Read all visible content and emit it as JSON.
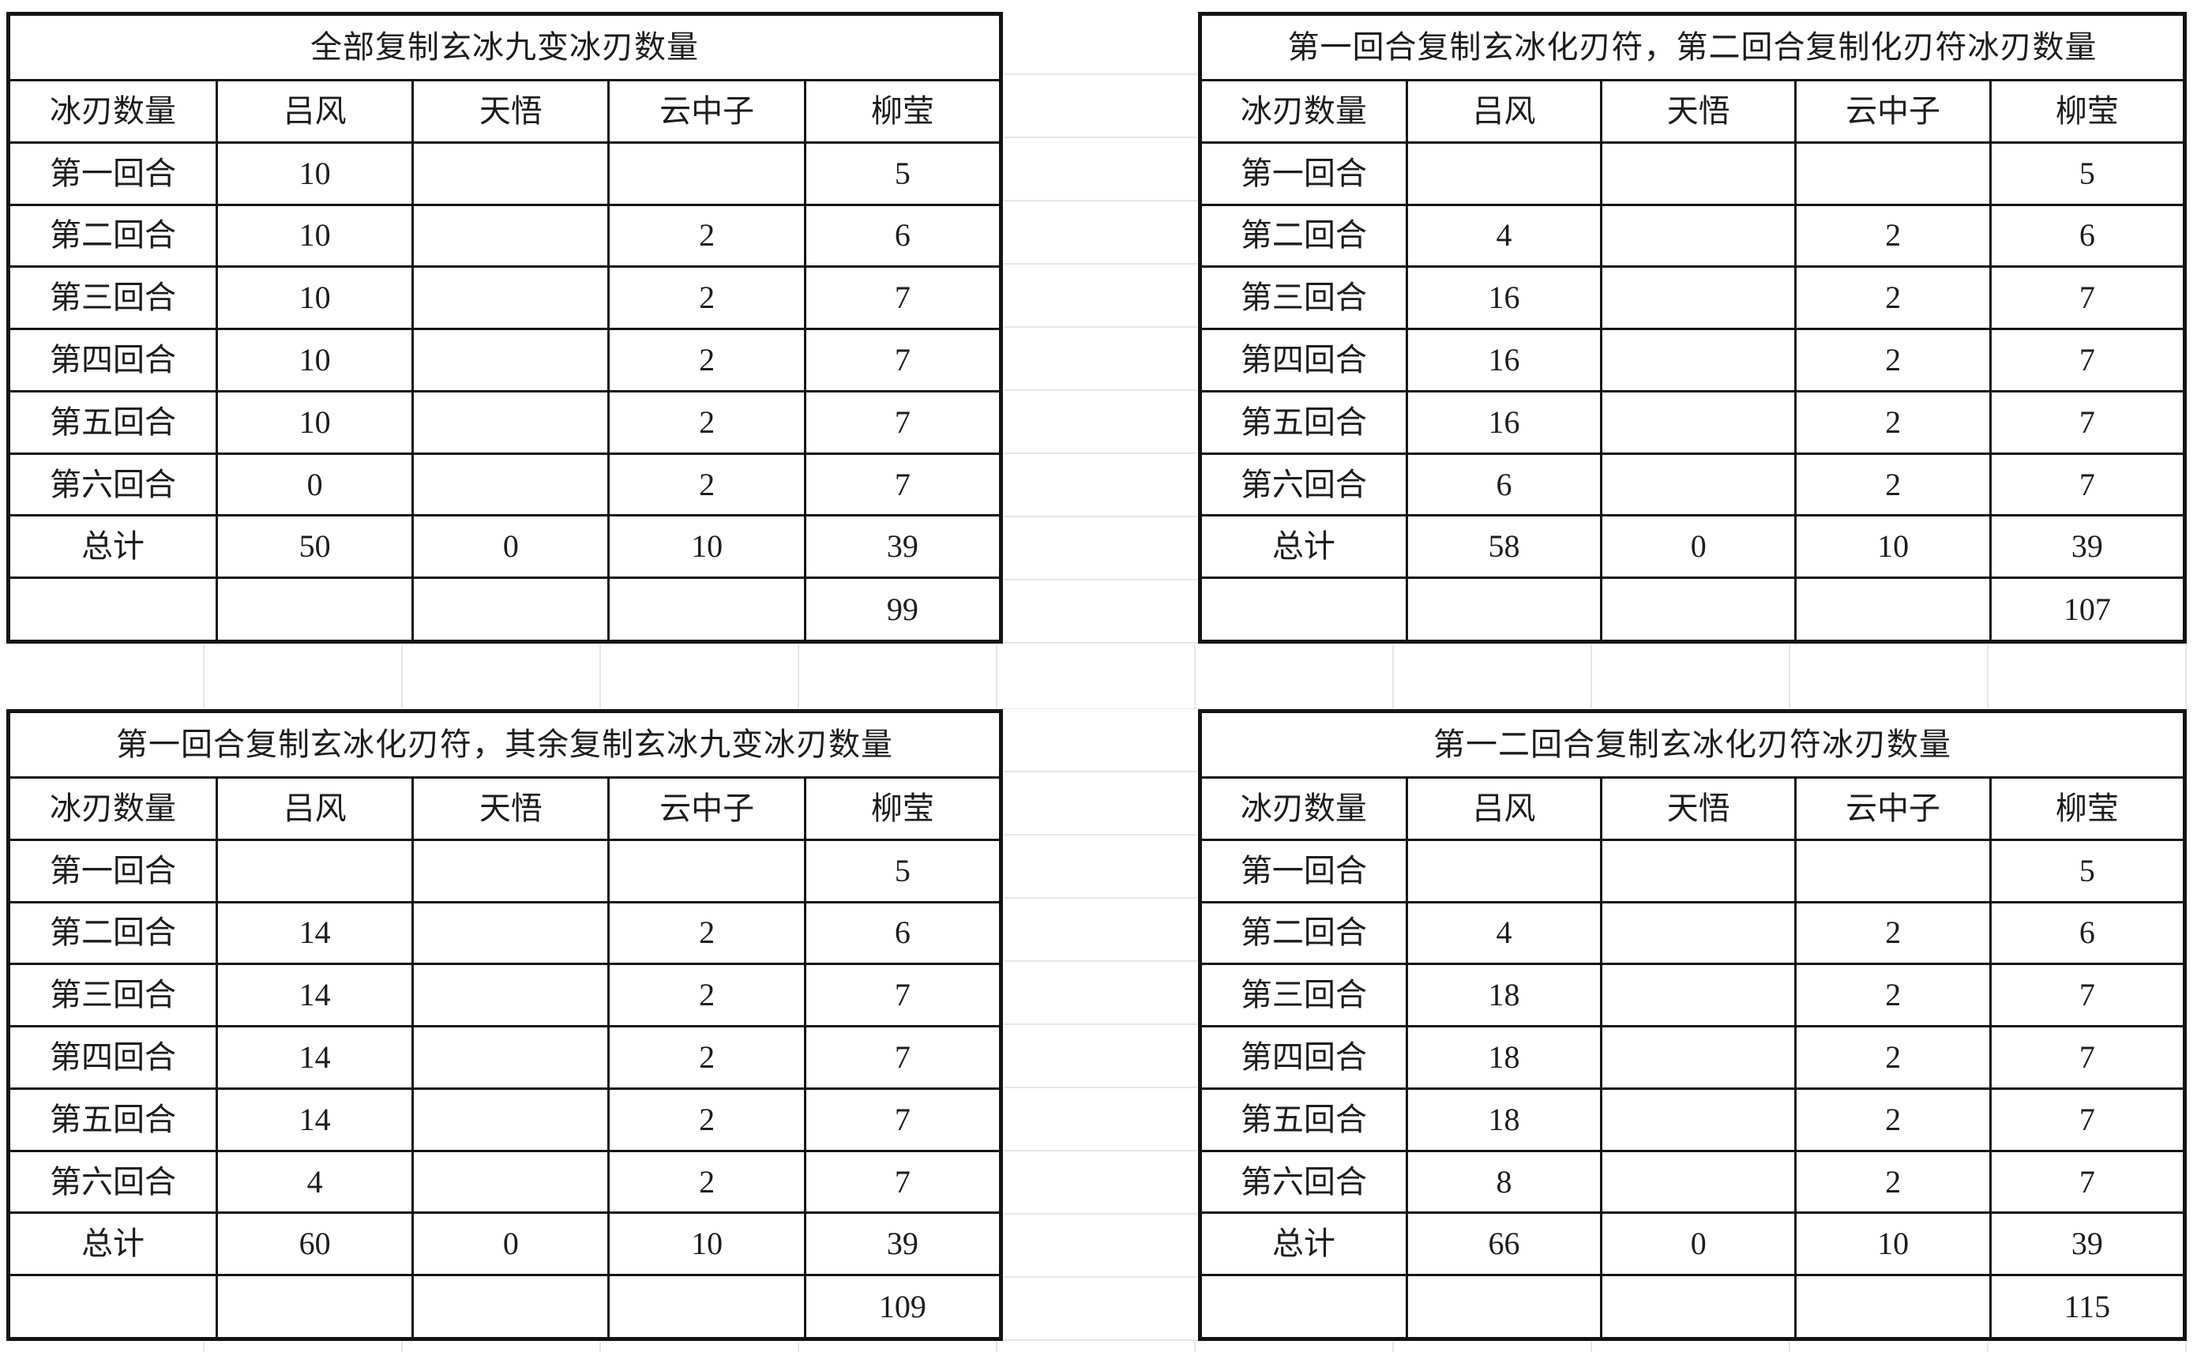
{
  "page": {
    "background_color": "#ffffff",
    "table_border_color": "#141414",
    "gridline_color": "#e6e6e6",
    "text_color": "#1d1d1d"
  },
  "tables": [
    {
      "position": "top-left",
      "title": "全部复制玄冰九变冰刃数量",
      "columns": [
        "冰刃数量",
        "吕风",
        "天悟",
        "云中子",
        "柳莹"
      ],
      "rows": [
        {
          "label": "第一回合",
          "values": [
            "10",
            "",
            "",
            "5"
          ]
        },
        {
          "label": "第二回合",
          "values": [
            "10",
            "",
            "2",
            "6"
          ]
        },
        {
          "label": "第三回合",
          "values": [
            "10",
            "",
            "2",
            "7"
          ]
        },
        {
          "label": "第四回合",
          "values": [
            "10",
            "",
            "2",
            "7"
          ]
        },
        {
          "label": "第五回合",
          "values": [
            "10",
            "",
            "2",
            "7"
          ]
        },
        {
          "label": "第六回合",
          "values": [
            "0",
            "",
            "2",
            "7"
          ]
        },
        {
          "label": "总计",
          "values": [
            "50",
            "0",
            "10",
            "39"
          ]
        },
        {
          "label": "",
          "values": [
            "",
            "",
            "",
            "99"
          ]
        }
      ]
    },
    {
      "position": "top-right",
      "title": "第一回合复制玄冰化刃符，第二回合复制化刃符冰刃数量",
      "columns": [
        "冰刃数量",
        "吕风",
        "天悟",
        "云中子",
        "柳莹"
      ],
      "rows": [
        {
          "label": "第一回合",
          "values": [
            "",
            "",
            "",
            "5"
          ]
        },
        {
          "label": "第二回合",
          "values": [
            "4",
            "",
            "2",
            "6"
          ]
        },
        {
          "label": "第三回合",
          "values": [
            "16",
            "",
            "2",
            "7"
          ]
        },
        {
          "label": "第四回合",
          "values": [
            "16",
            "",
            "2",
            "7"
          ]
        },
        {
          "label": "第五回合",
          "values": [
            "16",
            "",
            "2",
            "7"
          ]
        },
        {
          "label": "第六回合",
          "values": [
            "6",
            "",
            "2",
            "7"
          ]
        },
        {
          "label": "总计",
          "values": [
            "58",
            "0",
            "10",
            "39"
          ]
        },
        {
          "label": "",
          "values": [
            "",
            "",
            "",
            "107"
          ]
        }
      ]
    },
    {
      "position": "bottom-left",
      "title": "第一回合复制玄冰化刃符，其余复制玄冰九变冰刃数量",
      "columns": [
        "冰刃数量",
        "吕风",
        "天悟",
        "云中子",
        "柳莹"
      ],
      "rows": [
        {
          "label": "第一回合",
          "values": [
            "",
            "",
            "",
            "5"
          ]
        },
        {
          "label": "第二回合",
          "values": [
            "14",
            "",
            "2",
            "6"
          ]
        },
        {
          "label": "第三回合",
          "values": [
            "14",
            "",
            "2",
            "7"
          ]
        },
        {
          "label": "第四回合",
          "values": [
            "14",
            "",
            "2",
            "7"
          ]
        },
        {
          "label": "第五回合",
          "values": [
            "14",
            "",
            "2",
            "7"
          ]
        },
        {
          "label": "第六回合",
          "values": [
            "4",
            "",
            "2",
            "7"
          ]
        },
        {
          "label": "总计",
          "values": [
            "60",
            "0",
            "10",
            "39"
          ]
        },
        {
          "label": "",
          "values": [
            "",
            "",
            "",
            "109"
          ]
        }
      ]
    },
    {
      "position": "bottom-right",
      "title": "第一二回合复制玄冰化刃符冰刃数量",
      "columns": [
        "冰刃数量",
        "吕风",
        "天悟",
        "云中子",
        "柳莹"
      ],
      "rows": [
        {
          "label": "第一回合",
          "values": [
            "",
            "",
            "",
            "5"
          ]
        },
        {
          "label": "第二回合",
          "values": [
            "4",
            "",
            "2",
            "6"
          ]
        },
        {
          "label": "第三回合",
          "values": [
            "18",
            "",
            "2",
            "7"
          ]
        },
        {
          "label": "第四回合",
          "values": [
            "18",
            "",
            "2",
            "7"
          ]
        },
        {
          "label": "第五回合",
          "values": [
            "18",
            "",
            "2",
            "7"
          ]
        },
        {
          "label": "第六回合",
          "values": [
            "8",
            "",
            "2",
            "7"
          ]
        },
        {
          "label": "总计",
          "values": [
            "66",
            "0",
            "10",
            "39"
          ]
        },
        {
          "label": "",
          "values": [
            "",
            "",
            "",
            "115"
          ]
        }
      ]
    }
  ]
}
